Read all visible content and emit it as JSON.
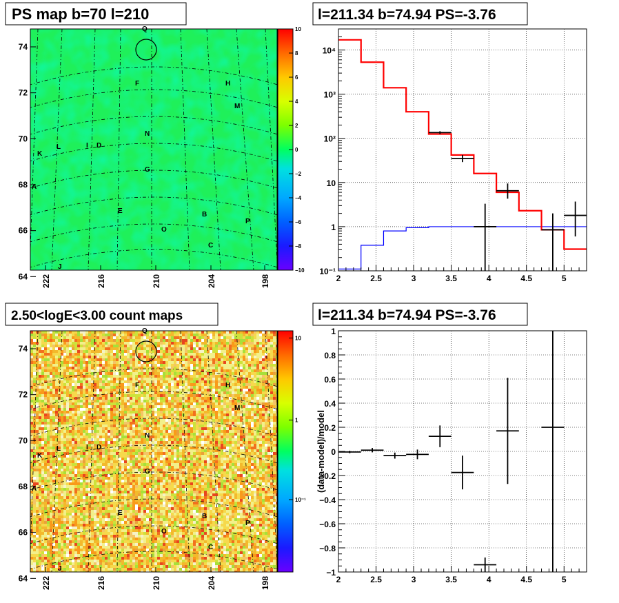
{
  "panels": {
    "ps_map": {
      "title": "PS map b=70 l=210",
      "y_ticks": [
        "74",
        "72",
        "70",
        "68",
        "66",
        "64"
      ],
      "x_ticks": [
        "222",
        "216",
        "210",
        "204",
        "198"
      ],
      "colorbar_ticks": [
        "10",
        "8",
        "6",
        "4",
        "2",
        "0",
        "−2",
        "−4",
        "−6",
        "−8",
        "−10"
      ],
      "colormap": "rainbow"
    },
    "count_map": {
      "title": "2.50<logE<3.00 count maps",
      "y_ticks": [
        "74",
        "72",
        "70",
        "68",
        "66",
        "64"
      ],
      "x_ticks": [
        "222",
        "216",
        "210",
        "204",
        "198"
      ],
      "colorbar_ticks": [
        "10",
        "1",
        "10⁻¹"
      ],
      "colormap": "rainbow (log)"
    },
    "spectrum": {
      "title": "l=211.34 b=74.94 PS=-3.76"
    },
    "residual": {
      "title": "l=211.34 b=74.94 PS=-3.76"
    }
  },
  "sources": [
    {
      "label": "Q"
    },
    {
      "label": "F"
    },
    {
      "label": "H"
    },
    {
      "label": "M"
    },
    {
      "label": "N"
    },
    {
      "label": "K"
    },
    {
      "label": "L"
    },
    {
      "label": "I"
    },
    {
      "label": "D"
    },
    {
      "label": "G"
    },
    {
      "label": "A"
    },
    {
      "label": "E"
    },
    {
      "label": "B"
    },
    {
      "label": "P"
    },
    {
      "label": "O"
    },
    {
      "label": "C"
    },
    {
      "label": "J"
    }
  ],
  "chart_data": [
    {
      "type": "line",
      "title": "l=211.34 b=74.94 PS=-3.76",
      "xlim": [
        2,
        5.3
      ],
      "ylim": [
        0.1,
        30000
      ],
      "yscale": "log",
      "x_ticks": [
        "2",
        "2.5",
        "3",
        "3.5",
        "4",
        "4.5",
        "5"
      ],
      "y_ticks": [
        "10⁻¹",
        "1",
        "10",
        "10²",
        "10³",
        "10⁴"
      ],
      "grid": true,
      "series": [
        {
          "style": "red step histogram",
          "color": "#ff0000",
          "bin_edges": [
            2.0,
            2.3,
            2.6,
            2.9,
            3.2,
            3.5,
            3.8,
            4.1,
            4.4,
            4.7,
            5.0,
            5.3
          ],
          "values": [
            17000,
            5300,
            1400,
            400,
            125,
            42,
            16,
            6.0,
            2.3,
            0.85,
            0.31
          ]
        },
        {
          "style": "blue step histogram",
          "color": "#0000ff",
          "bin_edges": [
            2.0,
            2.3,
            2.6,
            2.9,
            3.2,
            3.5,
            3.8,
            4.1,
            4.4,
            4.7,
            5.0,
            5.3
          ],
          "values": [
            0.11,
            0.38,
            0.8,
            0.95,
            1.0,
            1.0,
            1.0,
            1.0,
            1.0,
            1.0,
            1.0
          ]
        },
        {
          "style": "black data points with error bars",
          "color": "#000000",
          "points": [
            {
              "x": 3.35,
              "y": 135,
              "xerr": 0.15,
              "ylo": 125,
              "yhi": 145
            },
            {
              "x": 3.65,
              "y": 35,
              "xerr": 0.15,
              "ylo": 29,
              "yhi": 42
            },
            {
              "x": 3.95,
              "y": 1.0,
              "xerr": 0.15,
              "ylo": 0.1,
              "yhi": 3.3
            },
            {
              "x": 4.25,
              "y": 6.5,
              "xerr": 0.15,
              "ylo": 4.3,
              "yhi": 9.5
            },
            {
              "x": 4.85,
              "y": 0.85,
              "xerr": 0.15,
              "ylo": 0.1,
              "yhi": 2.0
            },
            {
              "x": 5.15,
              "y": 1.8,
              "xerr": 0.15,
              "ylo": 0.6,
              "yhi": 3.7
            }
          ]
        }
      ]
    },
    {
      "type": "scatter",
      "title": "l=211.34 b=74.94 PS=-3.76",
      "ylabel": "(data-model)/model",
      "xlim": [
        2,
        5.3
      ],
      "ylim": [
        -1,
        1
      ],
      "x_ticks": [
        "2",
        "2.5",
        "3",
        "3.5",
        "4",
        "4.5",
        "5"
      ],
      "y_ticks": [
        "1",
        "0.8",
        "0.6",
        "0.4",
        "0.2",
        "0",
        "−0.2",
        "−0.4",
        "−0.6",
        "−0.8",
        "−1"
      ],
      "grid": true,
      "series": [
        {
          "style": "black data points with error bars",
          "points": [
            {
              "x": 2.15,
              "y": -0.005,
              "xerr": 0.15,
              "err": 0.01
            },
            {
              "x": 2.45,
              "y": 0.01,
              "xerr": 0.15,
              "err": 0.018
            },
            {
              "x": 2.75,
              "y": -0.035,
              "xerr": 0.15,
              "err": 0.025
            },
            {
              "x": 3.05,
              "y": -0.025,
              "xerr": 0.15,
              "err": 0.04
            },
            {
              "x": 3.35,
              "y": 0.125,
              "xerr": 0.15,
              "err": 0.09
            },
            {
              "x": 3.65,
              "y": -0.175,
              "xerr": 0.15,
              "err": 0.14
            },
            {
              "x": 3.95,
              "y": -0.94,
              "xerr": 0.15,
              "err": 0.06
            },
            {
              "x": 4.25,
              "y": 0.17,
              "xerr": 0.15,
              "err": 0.44
            },
            {
              "x": 4.85,
              "y": 0.2,
              "xerr": 0.15,
              "err": 1.2
            }
          ]
        }
      ]
    }
  ]
}
